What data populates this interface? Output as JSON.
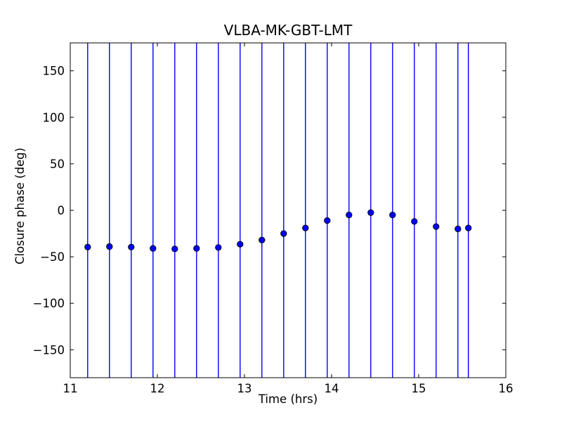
{
  "figure": {
    "background_color": "#ffffff",
    "frame_color": "#000000"
  },
  "chart_data": {
    "type": "scatter",
    "title": "VLBA-MK-GBT-LMT",
    "xlabel": "Time (hrs)",
    "ylabel": "Closure phase (deg)",
    "xlim": [
      11,
      16
    ],
    "ylim": [
      -180,
      180
    ],
    "xticks": [
      11,
      12,
      13,
      14,
      15,
      16
    ],
    "yticks": [
      -150,
      -100,
      -50,
      0,
      50,
      100,
      150
    ],
    "grid": false,
    "legend_position": "none",
    "tick_direction": "in",
    "series": [
      {
        "name": "closure-phase-points",
        "marker": "circle",
        "marker_color": "#0000ff",
        "marker_edge_color": "#000000",
        "errorbar_color": "#0000ff",
        "errorbar_full_span": true,
        "x": [
          11.2,
          11.45,
          11.7,
          11.95,
          12.2,
          12.45,
          12.7,
          12.95,
          13.2,
          13.45,
          13.7,
          13.95,
          14.2,
          14.45,
          14.7,
          14.95,
          15.2,
          15.45,
          15.57
        ],
        "y": [
          -39.5,
          -39.0,
          -39.5,
          -41.0,
          -41.5,
          -41.0,
          -40.0,
          -36.5,
          -32.0,
          -25.0,
          -19.0,
          -11.0,
          -5.0,
          -2.5,
          -5.0,
          -12.0,
          -17.5,
          -20.0,
          -19.0
        ]
      }
    ]
  }
}
